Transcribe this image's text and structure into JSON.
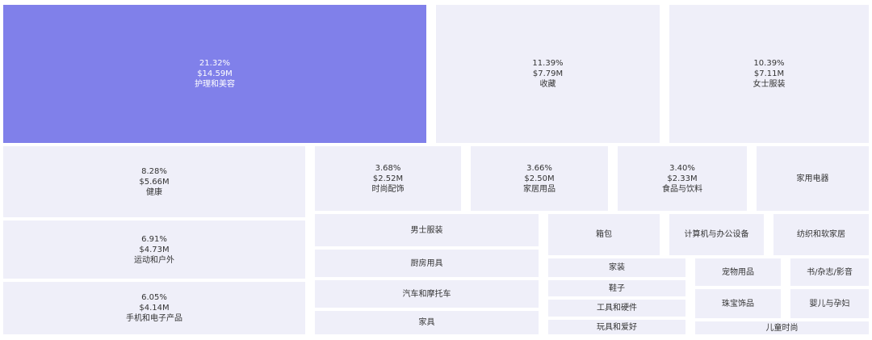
{
  "chart_data": {
    "type": "treemap",
    "highlight_color": "#8080ea",
    "tile_color": "#efeff9",
    "items": [
      {
        "name": "护理和美容",
        "percent": "21.32%",
        "value": "$14.59M"
      },
      {
        "name": "收藏",
        "percent": "11.39%",
        "value": "$7.79M"
      },
      {
        "name": "女士服装",
        "percent": "10.39%",
        "value": "$7.11M"
      },
      {
        "name": "健康",
        "percent": "8.28%",
        "value": "$5.66M"
      },
      {
        "name": "运动和户外",
        "percent": "6.91%",
        "value": "$4.73M"
      },
      {
        "name": "手机和电子产品",
        "percent": "6.05%",
        "value": "$4.14M"
      },
      {
        "name": "时尚配饰",
        "percent": "3.68%",
        "value": "$2.52M"
      },
      {
        "name": "家居用品",
        "percent": "3.66%",
        "value": "$2.50M"
      },
      {
        "name": "食品与饮料",
        "percent": "3.40%",
        "value": "$2.33M"
      },
      {
        "name": "家用电器"
      },
      {
        "name": "男士服装"
      },
      {
        "name": "厨房用具"
      },
      {
        "name": "汽车和摩托车"
      },
      {
        "name": "家具"
      },
      {
        "name": "箱包"
      },
      {
        "name": "计算机与办公设备"
      },
      {
        "name": "纺织和软家居"
      },
      {
        "name": "家装"
      },
      {
        "name": "鞋子"
      },
      {
        "name": "工具和硬件"
      },
      {
        "name": "玩具和爱好"
      },
      {
        "name": "宠物用品"
      },
      {
        "name": "书/杂志/影音"
      },
      {
        "name": "珠宝饰品"
      },
      {
        "name": "婴儿与孕妇"
      },
      {
        "name": "儿童时尚"
      }
    ]
  }
}
